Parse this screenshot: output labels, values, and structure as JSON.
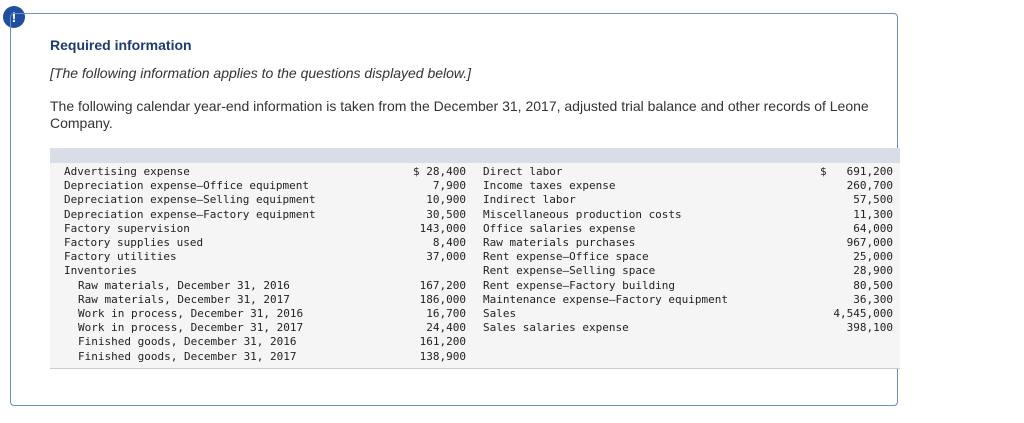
{
  "header": {
    "icon": "!",
    "title": "Required information",
    "note": "[The following information applies to the questions displayed below.]"
  },
  "intro": "The following calendar year-end information is taken from the December 31, 2017, adjusted trial balance and other records of Leone Company.",
  "table": {
    "left": [
      {
        "label": "Advertising expense",
        "amount": "$ 28,400"
      },
      {
        "label": "Depreciation expense—Office equipment",
        "amount": "7,900"
      },
      {
        "label": "Depreciation expense—Selling equipment",
        "amount": "10,900"
      },
      {
        "label": "Depreciation expense—Factory equipment",
        "amount": "30,500"
      },
      {
        "label": "Factory supervision",
        "amount": "143,000"
      },
      {
        "label": "Factory supplies used",
        "amount": "8,400"
      },
      {
        "label": "Factory utilities",
        "amount": "37,000"
      },
      {
        "label": "Inventories",
        "items": [
          {
            "label": "Raw materials, December 31, 2016",
            "amount": "167,200"
          },
          {
            "label": "Raw materials, December 31, 2017",
            "amount": "186,000"
          },
          {
            "label": "Work in process, December 31, 2016",
            "amount": "16,700"
          },
          {
            "label": "Work in process, December 31, 2017",
            "amount": "24,400"
          },
          {
            "label": "Finished goods, December 31, 2016",
            "amount": "161,200"
          },
          {
            "label": "Finished goods, December 31, 2017",
            "amount": "138,900"
          }
        ]
      }
    ],
    "right": [
      {
        "label": "Direct labor",
        "currency": "$",
        "amount": "691,200"
      },
      {
        "label": "Income taxes expense",
        "amount": "260,700"
      },
      {
        "label": "Indirect labor",
        "amount": "57,500"
      },
      {
        "label": "Miscellaneous production costs",
        "amount": "11,300"
      },
      {
        "label": "Office salaries expense",
        "amount": "64,000"
      },
      {
        "label": "Raw materials purchases",
        "amount": "967,000"
      },
      {
        "label": "Rent expense—Office space",
        "amount": "25,000"
      },
      {
        "label": "Rent expense—Selling space",
        "amount": "28,900"
      },
      {
        "label": "Rent expense—Factory building",
        "amount": "80,500"
      },
      {
        "label": "Maintenance expense—Factory equipment",
        "amount": "36,300"
      },
      {
        "label": "Sales",
        "amount": "4,545,000"
      },
      {
        "label": "Sales salaries expense",
        "amount": "398,100"
      }
    ]
  }
}
